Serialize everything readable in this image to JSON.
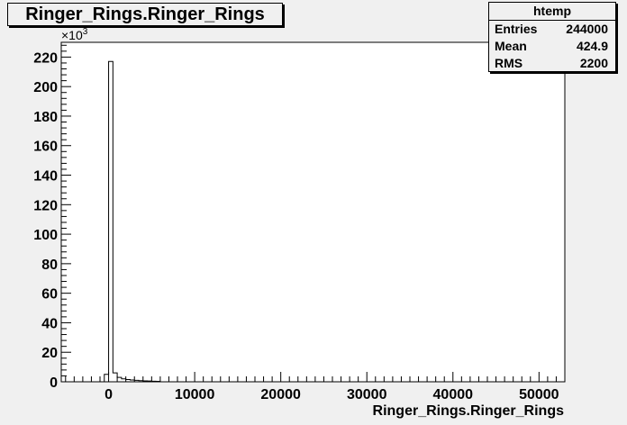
{
  "chart_data": {
    "type": "histogram",
    "title": "Ringer_Rings.Ringer_Rings",
    "xlabel": "Ringer_Rings.Ringer_Rings",
    "ylabel": "",
    "y_multiplier": "×10³",
    "xlim": [
      -5500,
      53000
    ],
    "ylim": [
      0,
      230
    ],
    "x_ticks": [
      0,
      10000,
      20000,
      30000,
      40000,
      50000
    ],
    "x_tick_labels": [
      "0",
      "10000",
      "20000",
      "30000",
      "40000",
      "50000"
    ],
    "y_ticks": [
      0,
      20,
      40,
      60,
      80,
      100,
      120,
      140,
      160,
      180,
      200,
      220
    ],
    "y_tick_labels": [
      "0",
      "20",
      "40",
      "60",
      "80",
      "100",
      "120",
      "140",
      "160",
      "180",
      "200",
      "220"
    ],
    "bins": [
      {
        "x0": -500,
        "x1": 0,
        "y": 5
      },
      {
        "x0": 0,
        "x1": 500,
        "y": 217
      },
      {
        "x0": 500,
        "x1": 1000,
        "y": 6
      },
      {
        "x0": 1000,
        "x1": 1500,
        "y": 3
      },
      {
        "x0": 1500,
        "x1": 2000,
        "y": 2
      },
      {
        "x0": 2000,
        "x1": 2500,
        "y": 1.5
      },
      {
        "x0": 2500,
        "x1": 3000,
        "y": 1.2
      },
      {
        "x0": 3000,
        "x1": 3500,
        "y": 1
      },
      {
        "x0": 3500,
        "x1": 4000,
        "y": 0.8
      },
      {
        "x0": 4000,
        "x1": 4500,
        "y": 0.6
      },
      {
        "x0": 4500,
        "x1": 5000,
        "y": 0.5
      },
      {
        "x0": 5000,
        "x1": 5500,
        "y": 0.4
      },
      {
        "x0": 5500,
        "x1": 6000,
        "y": 0.3
      }
    ],
    "grid": false,
    "legend": "none"
  },
  "stats": {
    "title": "htemp",
    "rows": [
      {
        "label": "Entries",
        "value": "244000"
      },
      {
        "label": "Mean",
        "value": "424.9"
      },
      {
        "label": "RMS",
        "value": "2200"
      }
    ]
  }
}
